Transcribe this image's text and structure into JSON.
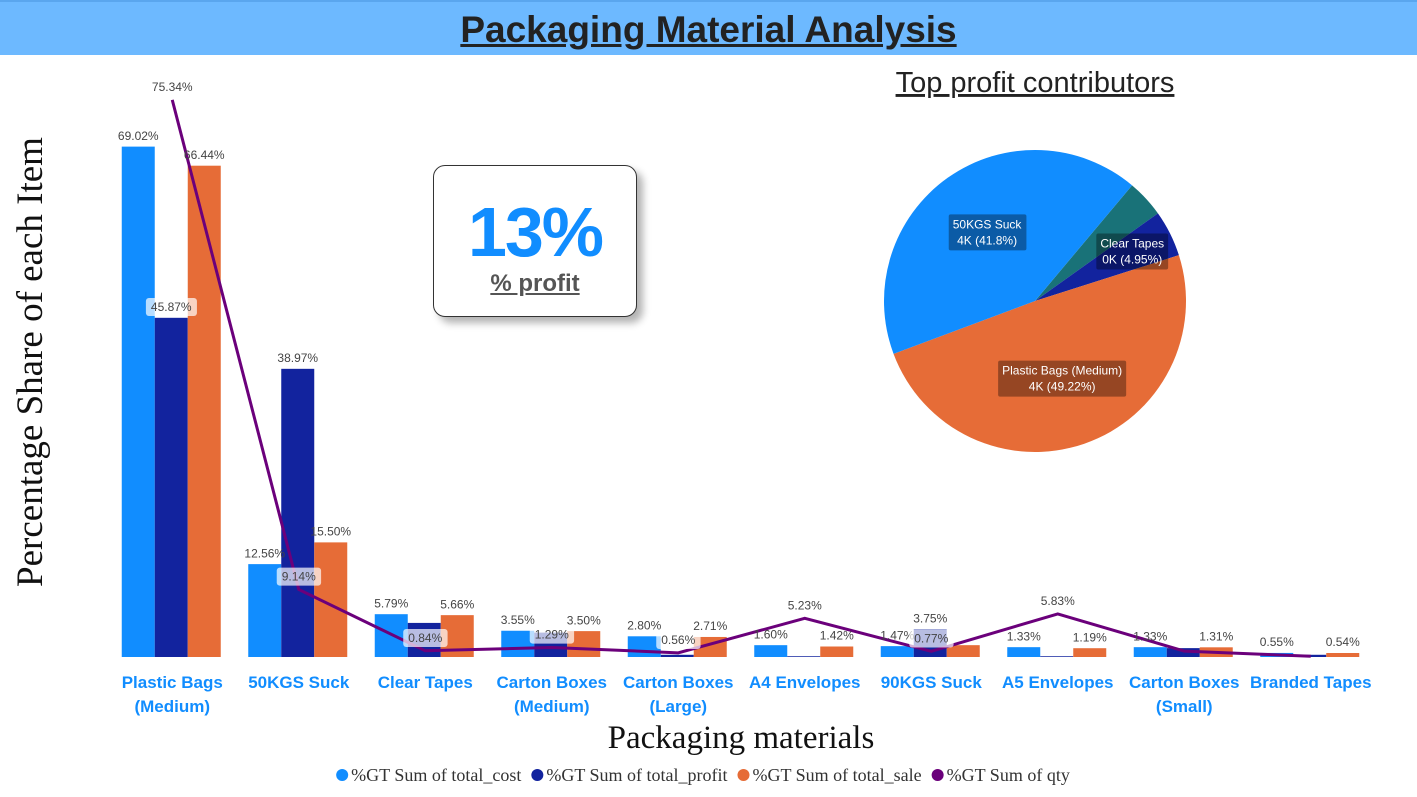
{
  "header": {
    "title": "Packaging Material Analysis"
  },
  "kpi": {
    "value": "13%",
    "label": "% profit"
  },
  "chart_data": [
    {
      "type": "combo",
      "x_label": "Packaging materials",
      "y_label": "Percentage Share of each Item",
      "categories": [
        "Plastic Bags (Medium)",
        "50KGS Suck",
        "Clear Tapes",
        "Carton Boxes (Medium)",
        "Carton Boxes (Large)",
        "A4 Envelopes",
        "90KGS Suck",
        "A5 Envelopes",
        "Carton Boxes (Small)",
        "Branded Tapes"
      ],
      "ylim": [
        0,
        76
      ],
      "legend": "bottom",
      "series": [
        {
          "name": "%GT Sum of total_cost",
          "type": "bar",
          "color": "#118DFF",
          "values": [
            69.02,
            12.56,
            5.79,
            3.55,
            2.8,
            1.6,
            1.47,
            1.33,
            1.33,
            0.55
          ],
          "value_labels": [
            "69.02%",
            "12.56%",
            "5.79%",
            "3.55%",
            "2.80%",
            "1.60%",
            "1.47%",
            "1.33%",
            "1.33%",
            "0.55%"
          ]
        },
        {
          "name": "%GT Sum of total_profit",
          "type": "bar",
          "color": "#12239E",
          "values": [
            45.87,
            38.97,
            4.61,
            3.3,
            0.3,
            0.1,
            3.75,
            0.1,
            1.2,
            0.3
          ],
          "value_labels": [
            "45.87%",
            "38.97%",
            null,
            null,
            null,
            null,
            "3.75%",
            null,
            null,
            null
          ]
        },
        {
          "name": "%GT Sum of total_sale",
          "type": "bar",
          "color": "#E66C37",
          "values": [
            66.44,
            15.5,
            5.66,
            3.5,
            2.71,
            1.42,
            1.6,
            1.19,
            1.31,
            0.54
          ],
          "value_labels": [
            "66.44%",
            "15.50%",
            "5.66%",
            "3.50%",
            "2.71%",
            "1.42%",
            null,
            "1.19%",
            "1.31%",
            "0.54%"
          ]
        },
        {
          "name": "%GT Sum of qty",
          "type": "line",
          "color": "#6B007B",
          "values": [
            75.34,
            9.14,
            0.84,
            1.29,
            0.56,
            5.23,
            0.77,
            5.83,
            0.8,
            0.1
          ],
          "value_labels": [
            "75.34%",
            "9.14%",
            "0.84%",
            "1.29%",
            "0.56%",
            "5.23%",
            "0.77%",
            "5.83%",
            null,
            null
          ]
        }
      ]
    },
    {
      "type": "pie",
      "title": "Top profit contributors",
      "categories": [
        null,
        "Clear Tapes",
        "Plastic Bags (Medium)",
        "50KGS Suck"
      ],
      "values": [
        4.03,
        4.95,
        49.22,
        41.8
      ],
      "value_labels": [
        null,
        "0K (4.95%)",
        "4K (49.22%)",
        "4K (41.8%)"
      ],
      "colors": [
        "#197278",
        "#12239E",
        "#E66C37",
        "#118DFF"
      ]
    }
  ]
}
